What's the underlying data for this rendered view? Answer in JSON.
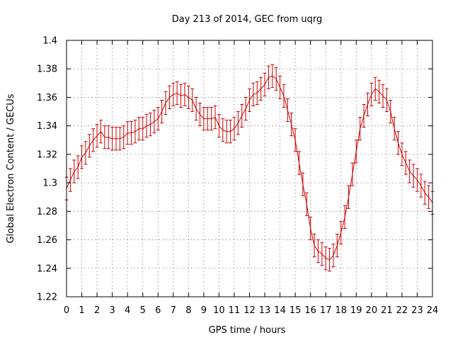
{
  "chart_data": {
    "type": "line",
    "title": "Day 213 of 2014, GEC from uqrg",
    "xlabel": "GPS time / hours",
    "ylabel": "Global Electron Content / GECUs",
    "xlim": [
      0,
      24
    ],
    "ylim": [
      1.22,
      1.4
    ],
    "x_ticks": [
      0,
      1,
      2,
      3,
      4,
      5,
      6,
      7,
      8,
      9,
      10,
      11,
      12,
      13,
      14,
      15,
      16,
      17,
      18,
      19,
      20,
      21,
      22,
      23,
      24
    ],
    "y_ticks": [
      1.22,
      1.24,
      1.26,
      1.28,
      1.3,
      1.32,
      1.34,
      1.36,
      1.38,
      1.4
    ],
    "y_tick_labels": [
      "1.22",
      "1.24",
      "1.26",
      "1.28",
      "1.3",
      "1.32",
      "1.34",
      "1.36",
      "1.38",
      "1.4"
    ],
    "grid": true,
    "color": "#cc0000",
    "error_bar": 0.008,
    "series": [
      {
        "x": [
          0,
          0.25,
          0.5,
          0.75,
          1,
          1.25,
          1.5,
          1.75,
          2,
          2.25,
          2.5,
          2.75,
          3,
          3.25,
          3.5,
          3.75,
          4,
          4.25,
          4.5,
          4.75,
          5,
          5.25,
          5.5,
          5.75,
          6,
          6.25,
          6.5,
          6.75,
          7,
          7.25,
          7.5,
          7.75,
          8,
          8.25,
          8.5,
          8.75,
          9,
          9.25,
          9.5,
          9.75,
          10,
          10.25,
          10.5,
          10.75,
          11,
          11.25,
          11.5,
          11.75,
          12,
          12.25,
          12.5,
          12.75,
          13,
          13.25,
          13.5,
          13.75,
          14,
          14.25,
          14.5,
          14.75,
          15,
          15.25,
          15.5,
          15.75,
          16,
          16.25,
          16.5,
          16.75,
          17,
          17.25,
          17.5,
          17.75,
          18,
          18.25,
          18.5,
          18.75,
          19,
          19.25,
          19.5,
          19.75,
          20,
          20.25,
          20.5,
          20.75,
          21,
          21.25,
          21.5,
          21.75,
          22,
          22.25,
          22.5,
          22.75,
          23,
          23.25,
          23.5,
          23.75,
          24
        ],
        "y": [
          1.296,
          1.302,
          1.308,
          1.311,
          1.318,
          1.321,
          1.326,
          1.33,
          1.333,
          1.336,
          1.332,
          1.332,
          1.331,
          1.331,
          1.331,
          1.332,
          1.335,
          1.335,
          1.336,
          1.338,
          1.338,
          1.34,
          1.341,
          1.343,
          1.345,
          1.35,
          1.356,
          1.36,
          1.362,
          1.363,
          1.361,
          1.362,
          1.36,
          1.358,
          1.352,
          1.348,
          1.345,
          1.345,
          1.345,
          1.346,
          1.34,
          1.337,
          1.336,
          1.336,
          1.338,
          1.342,
          1.347,
          1.352,
          1.358,
          1.362,
          1.363,
          1.366,
          1.369,
          1.374,
          1.375,
          1.373,
          1.367,
          1.361,
          1.351,
          1.341,
          1.33,
          1.314,
          1.299,
          1.285,
          1.268,
          1.256,
          1.252,
          1.25,
          1.247,
          1.246,
          1.249,
          1.256,
          1.265,
          1.276,
          1.29,
          1.306,
          1.322,
          1.338,
          1.347,
          1.355,
          1.362,
          1.366,
          1.364,
          1.361,
          1.358,
          1.35,
          1.338,
          1.328,
          1.32,
          1.314,
          1.308,
          1.305,
          1.302,
          1.298,
          1.293,
          1.29,
          1.286
        ]
      }
    ]
  }
}
